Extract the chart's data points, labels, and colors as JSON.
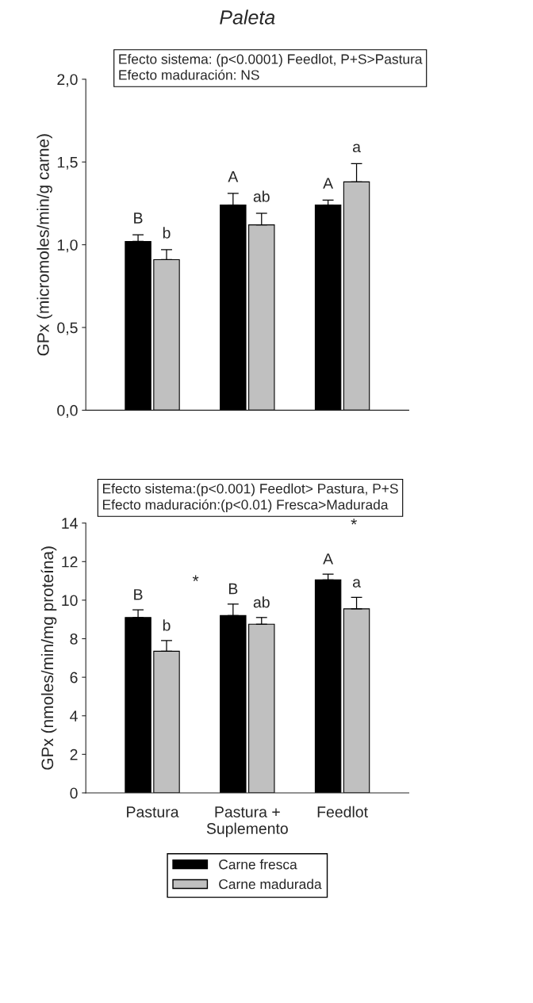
{
  "chart_data": [
    {
      "type": "bar",
      "title": "Paleta",
      "ylabel": "GPx (micromoles/min/g carne)",
      "categories": [
        null,
        null,
        null
      ],
      "series": [
        {
          "color": "#000000",
          "values": [
            1.02,
            1.24,
            1.24
          ],
          "errors": [
            0.04,
            0.07,
            0.03
          ],
          "value_labels": [
            "B",
            "A",
            "A"
          ]
        },
        {
          "color": "#c0c0c0",
          "values": [
            0.91,
            1.12,
            1.38
          ],
          "errors": [
            0.06,
            0.07,
            0.11
          ],
          "value_labels": [
            "b",
            "ab",
            "a"
          ]
        }
      ],
      "ylim": [
        0,
        2.0
      ],
      "yticks": [
        {
          "value": 0,
          "label": "0,0"
        },
        {
          "value": 0.5,
          "label": "0,5"
        },
        {
          "value": 1.0,
          "label": "1,0"
        },
        {
          "value": 1.5,
          "label": "1,5"
        },
        {
          "value": 2.0,
          "label": "2,0"
        }
      ],
      "tick_labels": "y",
      "grid": false,
      "annotations": [
        "Efecto sistema: (p<0.0001) Feedlot, P+S>Pastura",
        "Efecto maduración: NS"
      ]
    },
    {
      "type": "bar",
      "ylabel": "GPx (nmoles/min/mg proteína)",
      "categories": [
        "Pastura",
        "Pastura +\nSuplemento",
        "Feedlot"
      ],
      "series": [
        {
          "name": "Carne fresca",
          "color": "#000000",
          "values": [
            9.1,
            9.2,
            11.05
          ],
          "errors": [
            0.4,
            0.6,
            0.3
          ],
          "value_labels": [
            "B",
            "B",
            "A"
          ]
        },
        {
          "name": "Carne madurada",
          "color": "#c0c0c0",
          "values": [
            7.35,
            8.75,
            9.55
          ],
          "errors": [
            0.55,
            0.35,
            0.6
          ],
          "value_labels": [
            "b",
            "ab",
            "a"
          ]
        }
      ],
      "ylim": [
        0,
        14
      ],
      "yticks": [
        0,
        2,
        4,
        6,
        8,
        10,
        12,
        14
      ],
      "grid": false,
      "legend": "bottom",
      "annotations": [
        "Efecto sistema:(p<0.001) Feedlot> Pastura, P+S",
        "Efecto maduración:(p<0.01) Fresca>Madurada",
        "*",
        "*"
      ]
    }
  ]
}
